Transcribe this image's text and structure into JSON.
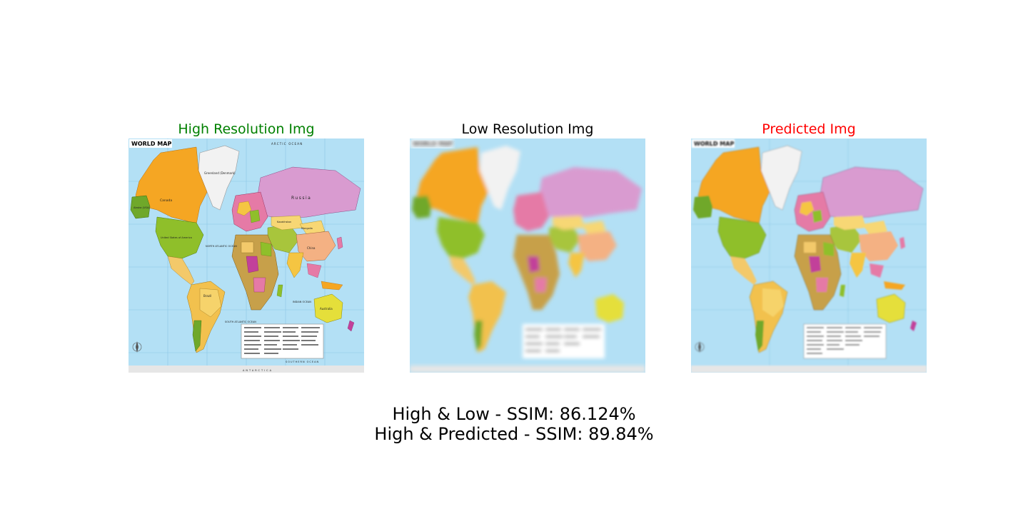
{
  "figure": {
    "panels": [
      {
        "title": "High Resolution Img",
        "title_color": "#008000",
        "image_label": "WORLD MAP",
        "image_quality": "sharp",
        "map_labels": [
          "ARCTIC OCEAN",
          "Greenland (Denmark)",
          "Canada",
          "Russia",
          "United States of America",
          "Alaska (USA)",
          "Mongolia",
          "China",
          "Kazakhstan",
          "Brazil",
          "Australia",
          "NORTH ATLANTIC OCEAN",
          "SOUTH ATLANTIC OCEAN",
          "INDIAN OCEAN",
          "SOUTHERN OCEAN",
          "ANTARCTICA"
        ]
      },
      {
        "title": "Low Resolution Img",
        "title_color": "#000000",
        "image_label": "WORLD MAP",
        "image_quality": "blurred"
      },
      {
        "title": "Predicted Img",
        "title_color": "#ff0000",
        "image_label": "WORLD MAP",
        "image_quality": "slightly-blurred"
      }
    ],
    "captions": [
      "High & Low - SSIM: 86.124%",
      "High & Predicted - SSIM: 89.84%"
    ],
    "colors": {
      "ocean": "#b3e0f5",
      "greenland": "#f2f2f2",
      "north_america": "#f5a623",
      "usa": "#8fbf2a",
      "central_america": "#f3c96a",
      "south_america": "#f2c14e",
      "brazil": "#f6d36b",
      "argentina": "#6fa82a",
      "russia": "#d99bd0",
      "europe": "#e57aa6",
      "africa": "#c7a04a",
      "africa_accent": "#c2409a",
      "middle_east": "#a8c53c",
      "asia": "#f0a3a0",
      "mongolia": "#f7d774",
      "india": "#f5c542",
      "china": "#f4b183",
      "australia": "#e5df3a",
      "legend_box": "#ffffff"
    }
  }
}
